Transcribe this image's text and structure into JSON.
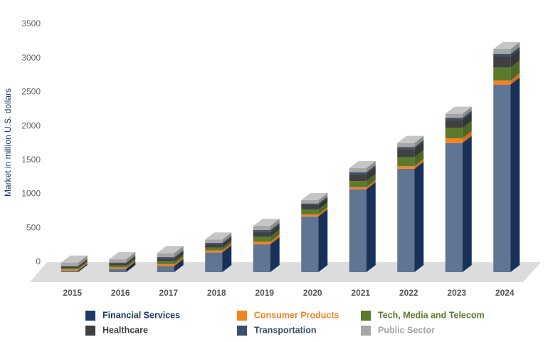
{
  "chart_data": {
    "type": "bar3d-stacked",
    "y_label": "Market in million U.S. dollars",
    "categories": [
      "2015",
      "2016",
      "2017",
      "2018",
      "2019",
      "2020",
      "2021",
      "2022",
      "2023",
      "2024"
    ],
    "ylim": [
      0,
      3500
    ],
    "yticks": [
      0,
      500,
      1000,
      1500,
      2000,
      2500,
      3000,
      3500
    ],
    "series": [
      {
        "name": "Financial Services",
        "color": "#1c3a66",
        "values": [
          20,
          50,
          90,
          290,
          410,
          820,
          1220,
          1520,
          1900,
          2760
        ]
      },
      {
        "name": "Consumer Products",
        "color": "#f58220",
        "values": [
          20,
          20,
          30,
          30,
          40,
          30,
          30,
          40,
          70,
          60
        ]
      },
      {
        "name": "Tech, Media and Telecom",
        "color": "#5b7a2e",
        "values": [
          20,
          30,
          40,
          40,
          70,
          70,
          90,
          130,
          150,
          190
        ]
      },
      {
        "name": "Healthcare",
        "color": "#404040",
        "values": [
          20,
          30,
          40,
          50,
          70,
          70,
          100,
          120,
          120,
          160
        ]
      },
      {
        "name": "Transportation",
        "color": "#3a506b",
        "values": [
          10,
          10,
          20,
          20,
          30,
          20,
          30,
          30,
          30,
          40
        ]
      },
      {
        "name": "Public Sector",
        "color": "#a6a6a6",
        "values": [
          50,
          50,
          60,
          50,
          60,
          50,
          60,
          60,
          60,
          70
        ]
      }
    ]
  }
}
